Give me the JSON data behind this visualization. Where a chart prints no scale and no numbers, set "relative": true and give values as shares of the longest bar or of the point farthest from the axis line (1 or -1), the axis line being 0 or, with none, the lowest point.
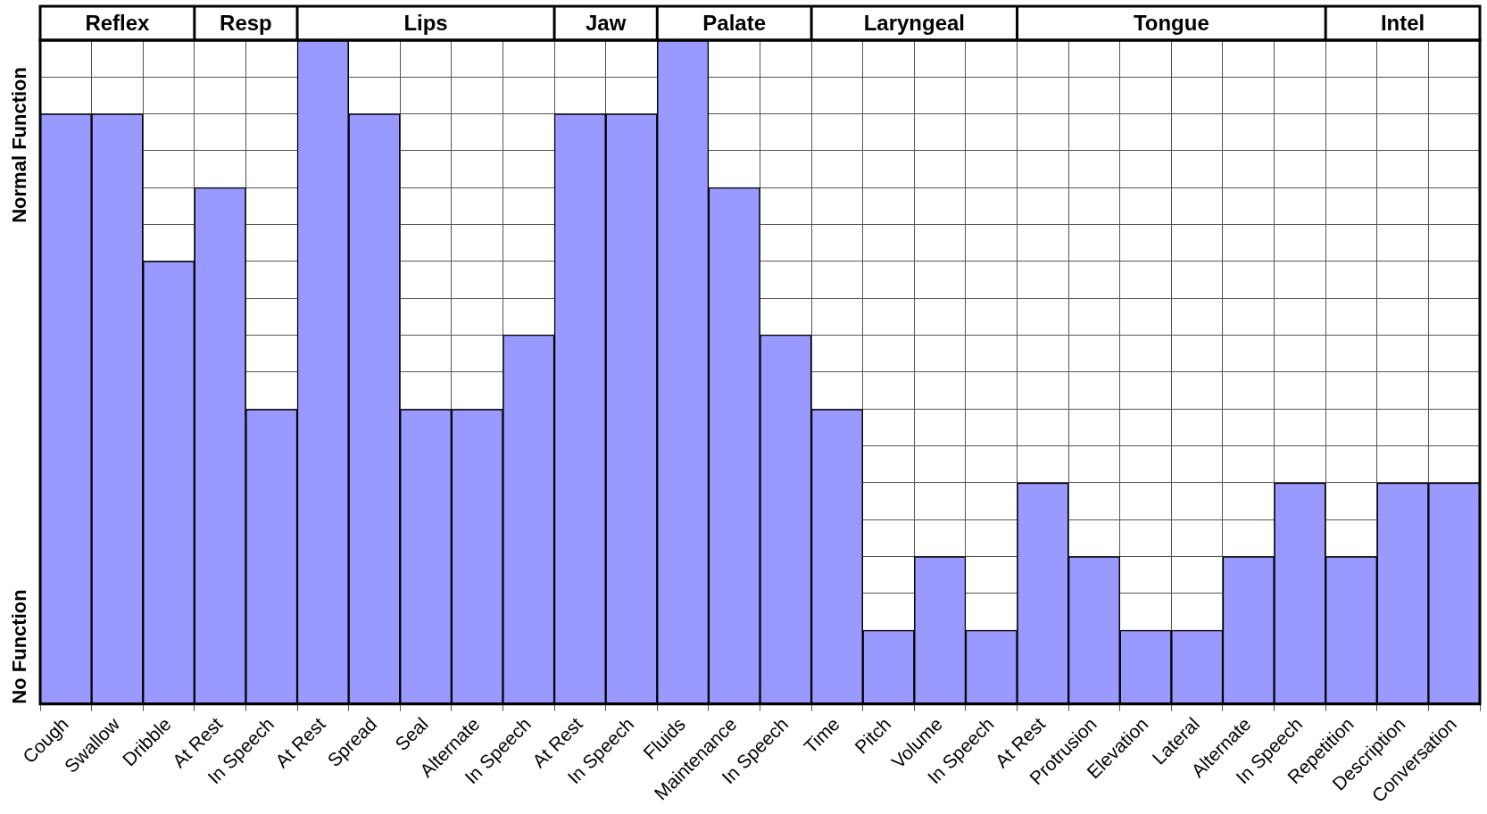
{
  "chart_data": {
    "type": "bar",
    "relative": true,
    "grid": true,
    "legend": false,
    "categories": [
      "Cough",
      "Swallow",
      "Dribble",
      "At Rest",
      "In Speech",
      "At Rest",
      "Spread",
      "Seal",
      "Alternate",
      "In Speech",
      "At Rest",
      "In Speech",
      "Fluids",
      "Maintenance",
      "In Speech",
      "Time",
      "Pitch",
      "Volume",
      "In Speech",
      "At Rest",
      "Protrusion",
      "Elevation",
      "Lateral",
      "Alternate",
      "In Speech",
      "Repetition",
      "Description",
      "Conversation"
    ],
    "series": [
      {
        "color": "#9999ff",
        "values": [
          0.889,
          0.889,
          0.667,
          0.778,
          0.444,
          1,
          0.889,
          0.444,
          0.444,
          0.556,
          0.889,
          0.889,
          1,
          0.778,
          0.556,
          0.444,
          0.111,
          0.222,
          0.111,
          0.333,
          0.222,
          0.111,
          0.111,
          0.222,
          0.333,
          0.222,
          0.333,
          0.333
        ]
      }
    ],
    "annotations": [
      "Reflex",
      "Resp",
      "Lips",
      "Jaw",
      "Palate",
      "Laryngeal",
      "Tongue",
      "Intel",
      "No Function",
      "Normal Function"
    ]
  }
}
